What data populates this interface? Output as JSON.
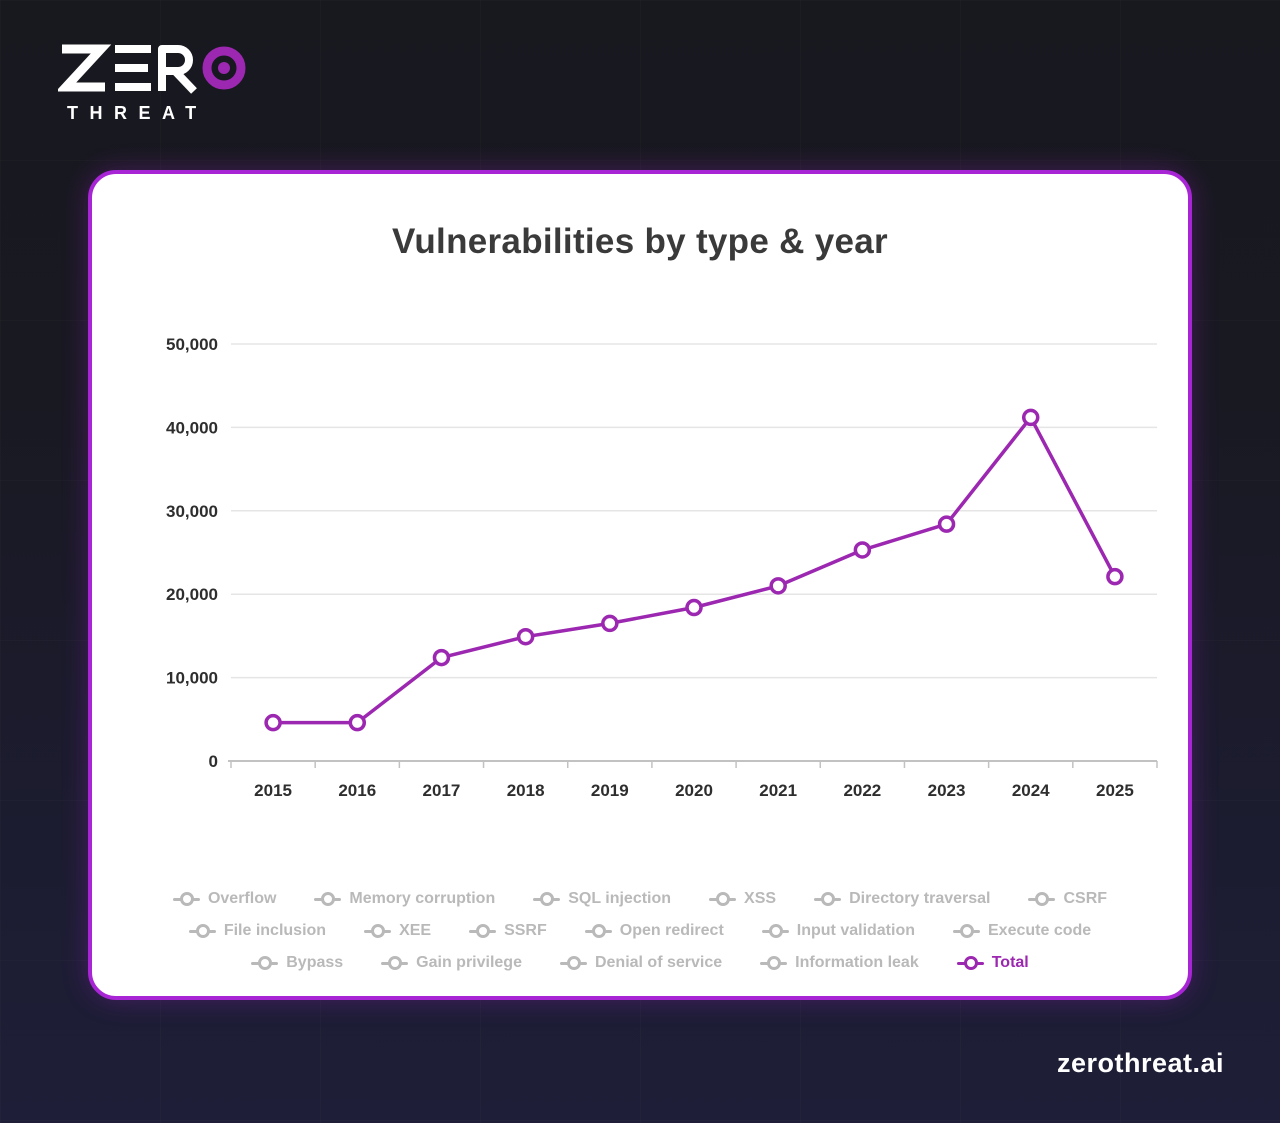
{
  "logo": {
    "brand_line1": "ZERO",
    "brand_line2": "THREAT"
  },
  "footer": {
    "site": "zerothreat.ai"
  },
  "colors": {
    "background_top": "#18181f",
    "background_bottom": "#1e1e38",
    "card_bg": "#ffffff",
    "card_border": "#a825d6",
    "accent_purple": "#9c27b0",
    "legend_inactive": "#b9b9b9",
    "grid_line": "#e5e5e5",
    "axis_line": "#c2c2c2",
    "title_color": "#3a3a3a",
    "footer_text": "#ffffff"
  },
  "chart_data": {
    "type": "line",
    "title": "Vulnerabilities by type & year",
    "categories": [
      "2015",
      "2016",
      "2017",
      "2018",
      "2019",
      "2020",
      "2021",
      "2022",
      "2023",
      "2024",
      "2025"
    ],
    "series": [
      {
        "name": "Total",
        "color": "#9c27b0",
        "values": [
          4600,
          4600,
          12400,
          14900,
          16500,
          18400,
          21000,
          25300,
          28400,
          41200,
          22100
        ]
      }
    ],
    "xlabel": "",
    "ylabel": "",
    "ylim": [
      0,
      50000
    ],
    "yticks": [
      0,
      10000,
      20000,
      30000,
      40000,
      50000
    ],
    "ytick_labels": [
      "0",
      "10,000",
      "20,000",
      "30,000",
      "40,000",
      "50,000"
    ],
    "grid": "horizontal",
    "legend_position": "bottom"
  },
  "legend": {
    "items": [
      {
        "label": "Overflow",
        "active": false
      },
      {
        "label": "Memory corruption",
        "active": false
      },
      {
        "label": "SQL injection",
        "active": false
      },
      {
        "label": "XSS",
        "active": false
      },
      {
        "label": "Directory traversal",
        "active": false
      },
      {
        "label": "CSRF",
        "active": false
      },
      {
        "label": "File inclusion",
        "active": false
      },
      {
        "label": "XEE",
        "active": false
      },
      {
        "label": "SSRF",
        "active": false
      },
      {
        "label": "Open redirect",
        "active": false
      },
      {
        "label": "Input validation",
        "active": false
      },
      {
        "label": "Execute code",
        "active": false
      },
      {
        "label": "Bypass",
        "active": false
      },
      {
        "label": "Gain privilege",
        "active": false
      },
      {
        "label": "Denial of service",
        "active": false
      },
      {
        "label": "Information leak",
        "active": false
      },
      {
        "label": "Total",
        "active": true
      }
    ]
  }
}
